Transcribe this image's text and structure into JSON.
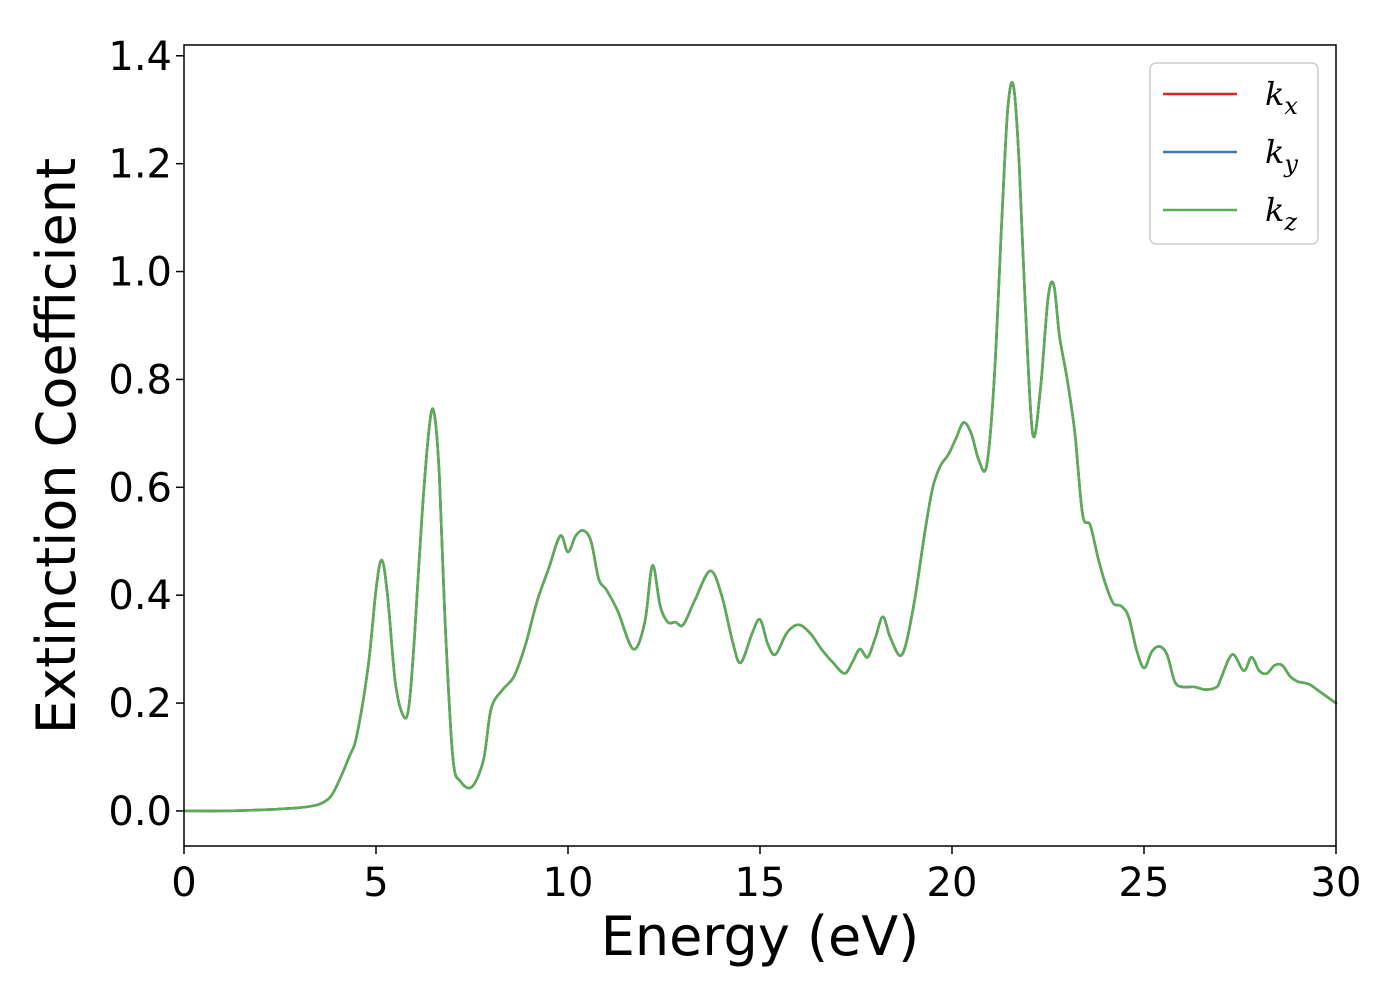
{
  "chart_data": {
    "type": "line",
    "xlabel": "Energy (eV)",
    "ylabel": "Extinction Coefficient",
    "xlim": [
      0,
      30
    ],
    "ylim": [
      -0.065,
      1.42
    ],
    "xticks": [
      0,
      5,
      10,
      15,
      20,
      25,
      30
    ],
    "xtick_labels": [
      "0",
      "5",
      "10",
      "15",
      "20",
      "25",
      "30"
    ],
    "yticks": [
      0.0,
      0.2,
      0.4,
      0.6,
      0.8,
      1.0,
      1.2,
      1.4
    ],
    "ytick_labels": [
      "0.0",
      "0.2",
      "0.4",
      "0.6",
      "0.8",
      "1.0",
      "1.2",
      "1.4"
    ],
    "grid": false,
    "legend_position": "top-right",
    "series": [
      {
        "name": "k",
        "subscript": "x",
        "color": "#d62728",
        "curve": "shared"
      },
      {
        "name": "k",
        "subscript": "y",
        "color": "#3a7ab8",
        "curve": "shared"
      },
      {
        "name": "k",
        "subscript": "z",
        "color": "#5aad55",
        "curve": "shared"
      }
    ],
    "x": [
      0,
      1.0,
      2.0,
      3.0,
      3.5,
      3.8,
      4.0,
      4.3,
      4.5,
      4.8,
      5.0,
      5.15,
      5.3,
      5.5,
      5.7,
      5.85,
      6.0,
      6.2,
      6.4,
      6.52,
      6.65,
      6.8,
      7.0,
      7.2,
      7.5,
      7.8,
      8.0,
      8.3,
      8.6,
      8.9,
      9.2,
      9.5,
      9.8,
      10.0,
      10.2,
      10.4,
      10.6,
      10.8,
      11.0,
      11.3,
      11.7,
      12.0,
      12.2,
      12.4,
      12.6,
      12.8,
      13.0,
      13.3,
      13.7,
      14.0,
      14.3,
      14.5,
      14.8,
      15.0,
      15.2,
      15.4,
      15.7,
      16.0,
      16.3,
      16.6,
      16.9,
      17.2,
      17.4,
      17.6,
      17.8,
      18.0,
      18.2,
      18.4,
      18.7,
      19.0,
      19.3,
      19.5,
      19.7,
      19.9,
      20.1,
      20.3,
      20.5,
      20.7,
      20.9,
      21.1,
      21.3,
      21.45,
      21.6,
      21.75,
      21.9,
      22.1,
      22.3,
      22.5,
      22.65,
      22.8,
      23.0,
      23.2,
      23.4,
      23.6,
      23.8,
      24.0,
      24.2,
      24.4,
      24.6,
      24.8,
      25.0,
      25.2,
      25.4,
      25.6,
      25.8,
      26.0,
      26.3,
      26.6,
      26.9,
      27.0,
      27.3,
      27.6,
      27.8,
      28.0,
      28.2,
      28.4,
      28.6,
      28.8,
      29.0,
      29.3,
      29.6,
      30.0
    ],
    "y": [
      0.0,
      0.0,
      0.002,
      0.006,
      0.012,
      0.025,
      0.05,
      0.1,
      0.14,
      0.27,
      0.41,
      0.465,
      0.4,
      0.24,
      0.178,
      0.19,
      0.32,
      0.55,
      0.72,
      0.735,
      0.62,
      0.35,
      0.1,
      0.055,
      0.045,
      0.095,
      0.19,
      0.225,
      0.25,
      0.31,
      0.39,
      0.45,
      0.51,
      0.48,
      0.51,
      0.52,
      0.5,
      0.43,
      0.41,
      0.37,
      0.3,
      0.35,
      0.455,
      0.38,
      0.35,
      0.35,
      0.345,
      0.39,
      0.445,
      0.4,
      0.31,
      0.275,
      0.33,
      0.355,
      0.31,
      0.29,
      0.33,
      0.345,
      0.33,
      0.3,
      0.275,
      0.255,
      0.275,
      0.3,
      0.285,
      0.32,
      0.36,
      0.32,
      0.29,
      0.38,
      0.52,
      0.6,
      0.64,
      0.66,
      0.69,
      0.72,
      0.7,
      0.65,
      0.64,
      0.8,
      1.1,
      1.3,
      1.345,
      1.2,
      0.95,
      0.7,
      0.78,
      0.95,
      0.975,
      0.88,
      0.8,
      0.7,
      0.55,
      0.53,
      0.47,
      0.42,
      0.385,
      0.38,
      0.36,
      0.3,
      0.265,
      0.295,
      0.305,
      0.29,
      0.24,
      0.23,
      0.23,
      0.225,
      0.23,
      0.245,
      0.29,
      0.26,
      0.285,
      0.26,
      0.255,
      0.27,
      0.27,
      0.25,
      0.24,
      0.235,
      0.22,
      0.2
    ]
  }
}
